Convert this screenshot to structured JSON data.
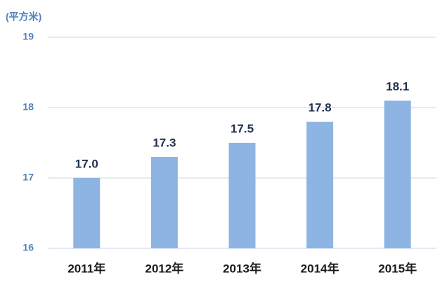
{
  "chart_data": {
    "type": "bar",
    "y_label": "(平方米)",
    "categories": [
      "2011年",
      "2012年",
      "2013年",
      "2014年",
      "2015年"
    ],
    "values": [
      17.0,
      17.3,
      17.5,
      17.8,
      18.1
    ],
    "value_labels": [
      "17.0",
      "17.3",
      "17.5",
      "17.8",
      "18.1"
    ],
    "color": "#8eb4e3",
    "ylim": [
      16,
      19
    ],
    "yticks": [
      16,
      17,
      18,
      19
    ],
    "grid": true
  }
}
